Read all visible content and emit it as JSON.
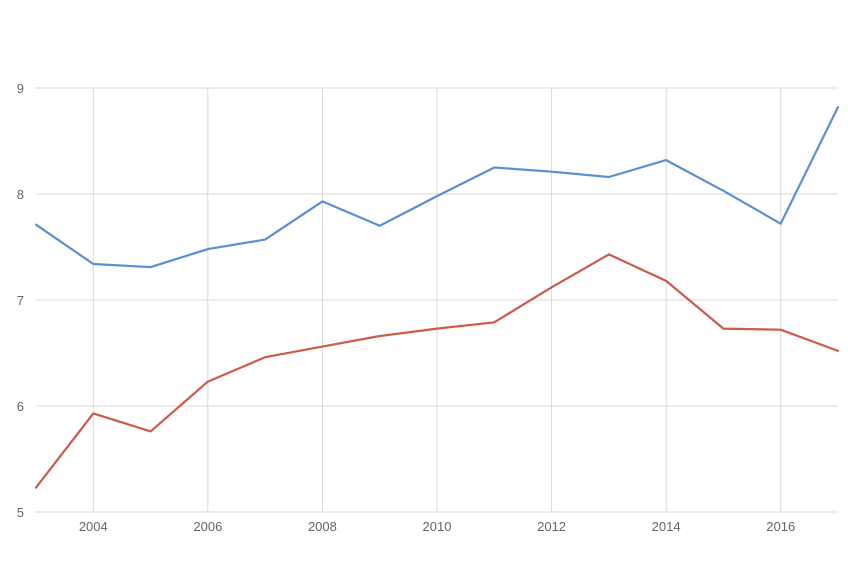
{
  "chart_data": {
    "type": "line",
    "x": [
      2003,
      2004,
      2005,
      2006,
      2007,
      2008,
      2009,
      2010,
      2011,
      2012,
      2013,
      2014,
      2015,
      2016,
      2017
    ],
    "series": [
      {
        "color": "#5a8fd4",
        "values": [
          7.71,
          7.34,
          7.31,
          7.48,
          7.57,
          7.93,
          7.7,
          7.98,
          8.25,
          8.21,
          8.16,
          8.32,
          8.03,
          7.72,
          8.82
        ]
      },
      {
        "color": "#cc5b4c",
        "values": [
          5.23,
          5.93,
          5.76,
          6.23,
          6.46,
          6.56,
          6.66,
          6.73,
          6.79,
          7.12,
          7.43,
          7.18,
          6.73,
          6.72,
          6.52
        ]
      }
    ],
    "xlim": [
      2003,
      2017
    ],
    "ylim": [
      5,
      9
    ],
    "x_ticks": [
      "2004",
      "2006",
      "2008",
      "2010",
      "2012",
      "2014",
      "2016"
    ],
    "y_ticks": [
      "5",
      "6",
      "7",
      "8",
      "9"
    ],
    "grid": true,
    "title": "",
    "xlabel": "",
    "ylabel": ""
  }
}
